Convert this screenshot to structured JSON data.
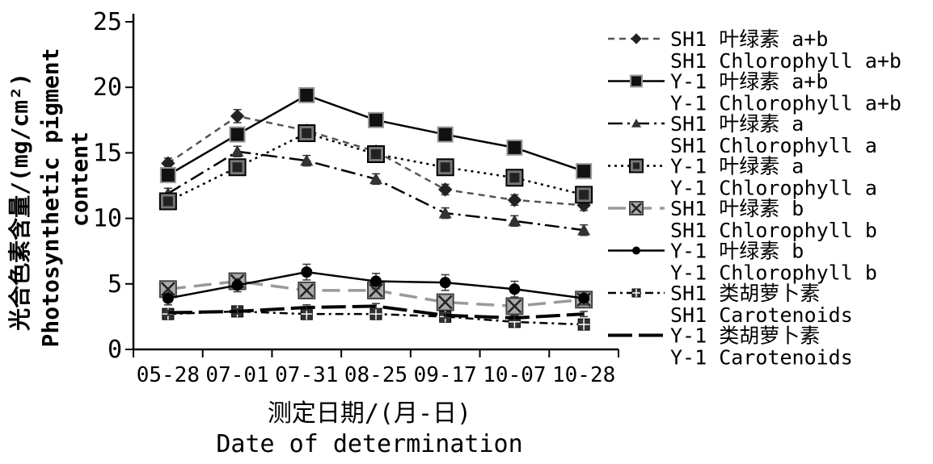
{
  "chart_data": {
    "type": "line",
    "categories": [
      "05-28",
      "07-01",
      "07-31",
      "08-25",
      "09-17",
      "10-07",
      "10-28"
    ],
    "ylim": [
      0,
      25
    ],
    "yticks": [
      0,
      5,
      10,
      15,
      20,
      25
    ],
    "xlabel_cn": "测定日期/(月-日)",
    "xlabel_en": "Date of determination",
    "ylabel_cn": "光合色素含量/(mg/cm²)",
    "ylabel_en_1": "Photosynthetic pigment",
    "ylabel_en_2": "content",
    "legend_placement": "right",
    "series": [
      {
        "name_cn": "SH1 叶绿素 a+b",
        "name_en": "SH1 Chlorophyll a+b",
        "color": "#555555",
        "marker": "diamond",
        "dash": "dashed",
        "values": [
          14.2,
          17.8,
          16.7,
          15.1,
          12.2,
          11.4,
          11.0
        ],
        "errors": [
          0.4,
          0.5,
          0.4,
          0.4,
          0.4,
          0.4,
          0.4
        ]
      },
      {
        "name_cn": "Y-1 叶绿素 a+b",
        "name_en": "Y-1 Chlorophyll a+b",
        "color": "#000000",
        "marker": "square",
        "dash": "solid",
        "values": [
          13.3,
          16.4,
          19.4,
          17.5,
          16.4,
          15.4,
          13.6
        ],
        "errors": [
          0.4,
          0.4,
          0.3,
          0.4,
          0.3,
          0.3,
          0.3
        ]
      },
      {
        "name_cn": "SH1 叶绿素 a",
        "name_en": "SH1 Chlorophyll a",
        "color": "#000000",
        "marker": "triangle",
        "dash": "dashdot",
        "values": [
          11.9,
          15.1,
          14.4,
          13.0,
          10.4,
          9.8,
          9.1
        ],
        "errors": [
          0.4,
          0.4,
          0.4,
          0.4,
          0.4,
          0.4,
          0.4
        ]
      },
      {
        "name_cn": "Y-1 叶绿素 a",
        "name_en": "Y-1 Chlorophyll a",
        "color": "#000000",
        "marker": "boxsquare",
        "dash": "dotted",
        "values": [
          11.3,
          13.9,
          16.5,
          14.9,
          13.9,
          13.1,
          11.8
        ],
        "errors": [
          0.4,
          0.4,
          0.4,
          0.4,
          0.4,
          0.4,
          0.4
        ]
      },
      {
        "name_cn": "SH1 叶绿素 b",
        "name_en": "SH1 Chlorophyll b",
        "color": "#999999",
        "marker": "xsquare",
        "dash": "longdash",
        "values": [
          4.6,
          5.2,
          4.5,
          4.5,
          3.6,
          3.3,
          3.8
        ],
        "errors": [
          0.3,
          0.3,
          0.3,
          0.3,
          0.3,
          0.3,
          0.3
        ]
      },
      {
        "name_cn": "Y-1 叶绿素 b",
        "name_en": "Y-1 Chlorophyll b",
        "color": "#000000",
        "marker": "circle",
        "dash": "solid",
        "values": [
          3.9,
          4.9,
          5.9,
          5.2,
          5.1,
          4.6,
          3.9
        ],
        "errors": [
          0.5,
          0.5,
          0.6,
          0.6,
          0.6,
          0.6,
          0.5
        ]
      },
      {
        "name_cn": "SH1 类胡萝卜素",
        "name_en": "SH1 Carotenoids",
        "color": "#000000",
        "marker": "crosssquare",
        "dash": "dashdotted",
        "values": [
          2.7,
          2.9,
          2.7,
          2.7,
          2.5,
          2.1,
          1.9
        ],
        "errors": [
          0.3,
          0.3,
          0.3,
          0.3,
          0.3,
          0.3,
          0.3
        ]
      },
      {
        "name_cn": "Y-1 类胡萝卜素",
        "name_en": "Y-1 Carotenoids",
        "color": "#000000",
        "marker": "none",
        "dash": "thick",
        "values": [
          2.8,
          2.9,
          3.2,
          3.3,
          2.6,
          2.4,
          2.7
        ],
        "errors": [
          0.2,
          0.2,
          0.2,
          0.2,
          0.2,
          0.2,
          0.2
        ]
      }
    ]
  }
}
